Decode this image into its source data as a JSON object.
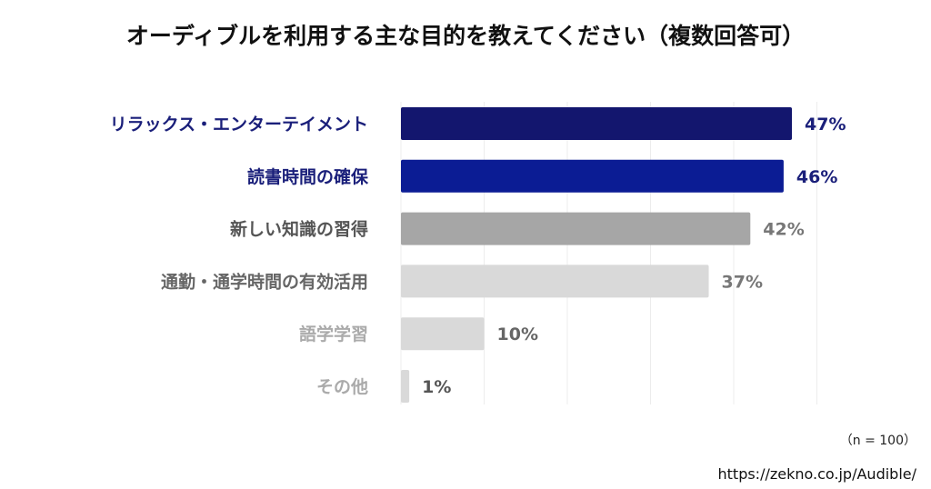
{
  "chart_data": {
    "type": "bar",
    "orientation": "horizontal",
    "title": "オーディブルを利用する主な目的を教えてください（複数回答可）",
    "categories": [
      "リラックス・エンターテイメント",
      "読書時間の確保",
      "新しい知識の習得",
      "通勤・通学時間の有効活用",
      "語学学習",
      "その他"
    ],
    "values": [
      47,
      46,
      42,
      37,
      10,
      1
    ],
    "value_labels": [
      "47%",
      "46%",
      "42%",
      "37%",
      "10%",
      "1%"
    ],
    "xlim": [
      0,
      50
    ],
    "grid": true,
    "bar_colors": [
      "#13166e",
      "#0b1c94",
      "#a6a6a6",
      "#d9d9d9",
      "#d9d9d9",
      "#d9d9d9"
    ],
    "label_colors": [
      "#1a1f7a",
      "#1a1f7a",
      "#555555",
      "#666666",
      "#aaaaaa",
      "#aaaaaa"
    ],
    "value_colors": [
      "#1a1f7a",
      "#1a1f7a",
      "#777777",
      "#777777",
      "#666666",
      "#555555"
    ],
    "note": "（n = 100）",
    "source": "https://zekno.co.jp/Audible/"
  }
}
